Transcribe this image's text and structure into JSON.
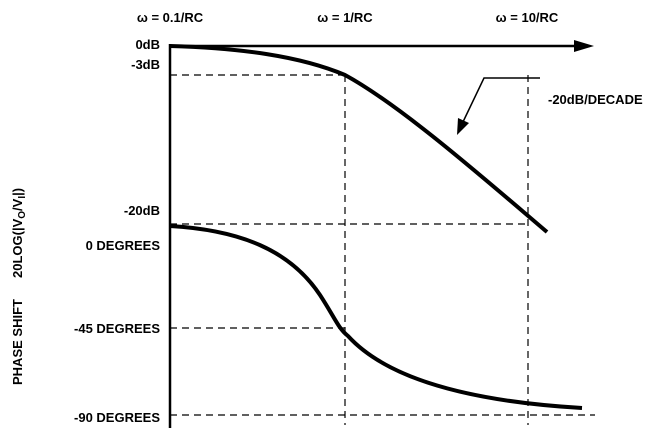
{
  "top_labels": [
    "ω = 0.1/RC",
    "ω = 1/RC",
    "ω = 10/RC"
  ],
  "left_labels": [
    "0dB",
    "-3dB",
    "-20dB",
    "0 DEGREES",
    "-45 DEGREES",
    "-90 DEGREES"
  ],
  "annotation": "-20dB/DECADE",
  "axis_label": {
    "phase": "PHASE SHIFT",
    "magnitude": [
      "20LOG(|V",
      "O",
      "/V",
      "I",
      "|)"
    ]
  }
}
